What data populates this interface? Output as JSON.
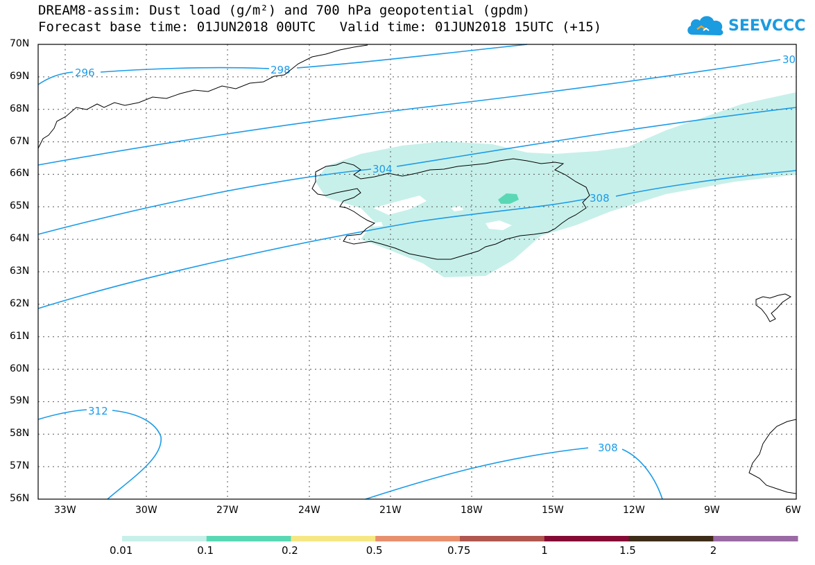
{
  "title_line1": "DREAM8-assim: Dust load (g/m²) and 700 hPa geopotential (gpdm)",
  "title_line2": "Forecast base time: 01JUN2018 00UTC   Valid time: 01JUN2018 15UTC (+15)",
  "logo_text": "SEEVCCC",
  "map": {
    "lat_labels": [
      "70N",
      "69N",
      "68N",
      "67N",
      "66N",
      "65N",
      "64N",
      "63N",
      "62N",
      "61N",
      "60N",
      "59N",
      "58N",
      "57N",
      "56N"
    ],
    "lon_labels": [
      "33W",
      "30W",
      "27W",
      "24W",
      "21W",
      "18W",
      "15W",
      "12W",
      "9W",
      "6W"
    ],
    "contour_labels": [
      "296",
      "298",
      "30",
      "304",
      "308",
      "312",
      "308"
    ],
    "colors": {
      "contour": "#1a9be8",
      "dust_light": "#c7f0ea",
      "dust_mid": "#5ad8b6",
      "coast": "#000000",
      "grid": "#555555"
    }
  },
  "colorbar": {
    "labels": [
      "0.01",
      "0.1",
      "0.2",
      "0.5",
      "0.75",
      "1",
      "1.5",
      "2"
    ],
    "colors": [
      "#c7f0ea",
      "#5ad8b6",
      "#f6e784",
      "#e8906e",
      "#b0574f",
      "#850b35",
      "#3d2c18",
      "#9a6aa4"
    ]
  }
}
